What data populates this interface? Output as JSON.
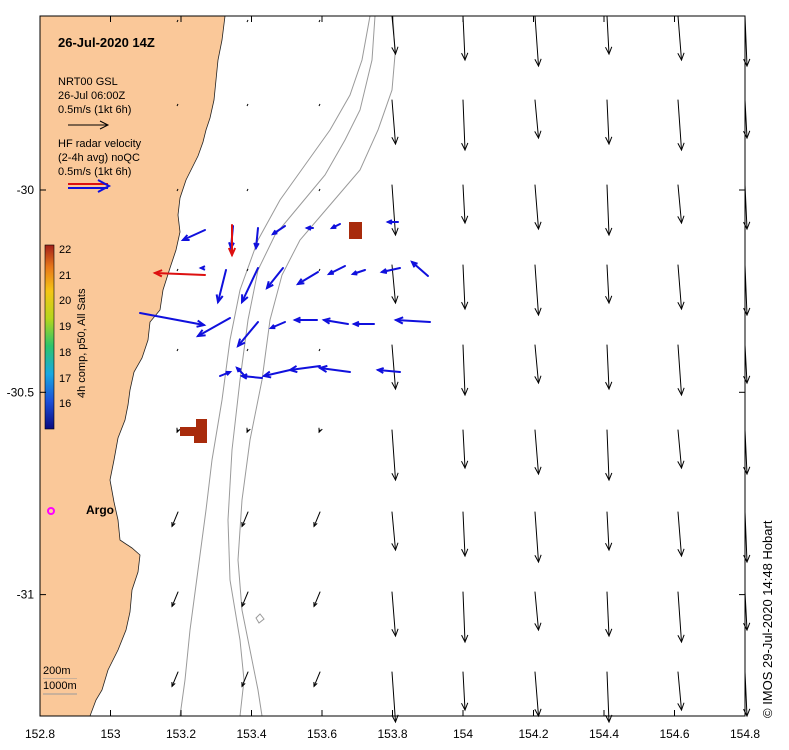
{
  "title": "26-Jul-2020 14Z",
  "legend": {
    "model": [
      "NRT00 GSL",
      "26-Jul 06:00Z",
      "0.5m/s (1kt 6h)"
    ],
    "radar": [
      "HF radar velocity",
      "(2-4h avg) noQC",
      "0.5m/s (1kt 6h)"
    ]
  },
  "colorbar": {
    "label": "4h comp, p50, All Sats",
    "ticks": [
      "22",
      "21",
      "20",
      "19",
      "18",
      "17",
      "16"
    ]
  },
  "argo_label": "Argo",
  "isobaths": [
    "200m",
    "1000m"
  ],
  "copyright": "©  IMOS 29-Jul-2020 14:48 Hobart",
  "axes": {
    "x_ticks": [
      "152.8",
      "153",
      "153.2",
      "153.4",
      "153.6",
      "153.8",
      "154",
      "154.2",
      "154.4",
      "154.6",
      "154.8"
    ],
    "y_ticks": [
      "-30",
      "-30.5",
      "-31"
    ],
    "xlim": [
      152.8,
      154.8
    ],
    "ylim": [
      -31.3,
      -29.57
    ]
  },
  "colors": {
    "land": "#FAC899",
    "model_arrow": "#000000",
    "radar_arrow": "#1010DD",
    "anomaly_arrow": "#DD1010",
    "sst_patch": "#A82B0C",
    "argo": "#FF00FF",
    "isobath": "#9A9A9A"
  }
}
